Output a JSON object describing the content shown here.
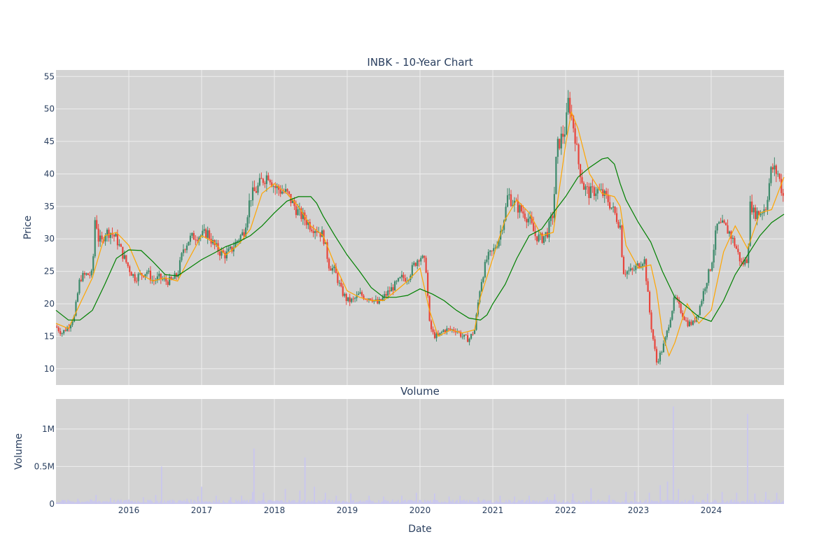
{
  "chart_data": [
    {
      "type": "candlestick",
      "title": "INBK - 10-Year Chart",
      "ylabel": "Price",
      "xlabel": "",
      "ylim": [
        7.5,
        56
      ],
      "xlim": [
        2015.0,
        2025.0
      ],
      "y_ticks": [
        10,
        15,
        20,
        25,
        30,
        35,
        40,
        45,
        50,
        55
      ],
      "x_ticks": [
        2016,
        2017,
        2018,
        2019,
        2020,
        2021,
        2022,
        2023,
        2024
      ],
      "grid": true,
      "up_color": "#3d8a6b",
      "down_color": "#e8453c",
      "series": [
        {
          "name": "",
          "kind": "close_path",
          "x": [
            2015.0,
            2015.08,
            2015.17,
            2015.25,
            2015.33,
            2015.42,
            2015.5,
            2015.54,
            2015.58,
            2015.63,
            2015.67,
            2015.75,
            2015.83,
            2015.92,
            2016.0,
            2016.08,
            2016.17,
            2016.25,
            2016.33,
            2016.42,
            2016.5,
            2016.58,
            2016.67,
            2016.75,
            2016.83,
            2016.92,
            2017.0,
            2017.08,
            2017.17,
            2017.25,
            2017.33,
            2017.42,
            2017.5,
            2017.58,
            2017.67,
            2017.75,
            2017.83,
            2017.92,
            2018.0,
            2018.08,
            2018.17,
            2018.25,
            2018.33,
            2018.42,
            2018.5,
            2018.58,
            2018.67,
            2018.75,
            2018.83,
            2018.92,
            2019.0,
            2019.08,
            2019.17,
            2019.25,
            2019.33,
            2019.42,
            2019.5,
            2019.58,
            2019.67,
            2019.75,
            2019.83,
            2019.92,
            2020.0,
            2020.08,
            2020.13,
            2020.17,
            2020.21,
            2020.25,
            2020.33,
            2020.42,
            2020.5,
            2020.58,
            2020.67,
            2020.75,
            2020.83,
            2020.92,
            2021.0,
            2021.08,
            2021.17,
            2021.21,
            2021.25,
            2021.33,
            2021.42,
            2021.5,
            2021.58,
            2021.67,
            2021.75,
            2021.83,
            2021.88,
            2021.92,
            2022.0,
            2022.04,
            2022.08,
            2022.13,
            2022.17,
            2022.25,
            2022.33,
            2022.42,
            2022.5,
            2022.58,
            2022.67,
            2022.75,
            2022.79,
            2022.83,
            2022.92,
            2023.0,
            2023.08,
            2023.17,
            2023.21,
            2023.25,
            2023.33,
            2023.38,
            2023.42,
            2023.5,
            2023.58,
            2023.67,
            2023.75,
            2023.83,
            2023.92,
            2024.0,
            2024.08,
            2024.17,
            2024.25,
            2024.33,
            2024.42,
            2024.5,
            2024.54,
            2024.58,
            2024.67,
            2024.75,
            2024.83,
            2024.92,
            2025.0
          ],
          "close": [
            16.5,
            15.5,
            16.5,
            18,
            24,
            24.5,
            24.5,
            34,
            30,
            29.5,
            31,
            31,
            30,
            27.5,
            25.5,
            24,
            24.5,
            25,
            23.5,
            24,
            23.5,
            23.5,
            24.5,
            28.5,
            30,
            30.5,
            30.5,
            31,
            29,
            28,
            27.5,
            28.5,
            30,
            31,
            36.5,
            37.5,
            39,
            40,
            38,
            37.5,
            37,
            35.5,
            34,
            33,
            32,
            31.5,
            30.5,
            26,
            25,
            22,
            20.5,
            20.5,
            21.5,
            21,
            21,
            20,
            21,
            22,
            23,
            24,
            24,
            26,
            27.5,
            26,
            17,
            15.5,
            15,
            15,
            16,
            16,
            16,
            15,
            14.5,
            16,
            23,
            27,
            28,
            30,
            34,
            37,
            36,
            35,
            34,
            33,
            30.5,
            30,
            31,
            34,
            44,
            45,
            47,
            51.5,
            49,
            46,
            42,
            38,
            37,
            37.5,
            37,
            36,
            34,
            32,
            25,
            25,
            25,
            26,
            27,
            17,
            14,
            11,
            13,
            15,
            17,
            21,
            19,
            17,
            17,
            19,
            23,
            26,
            32,
            32,
            31,
            29,
            26,
            27,
            36,
            34,
            34,
            35,
            41,
            40,
            36
          ]
        },
        {
          "name": "",
          "kind": "short_ma",
          "color": "#ffa500",
          "x": [
            2015.0,
            2015.17,
            2015.33,
            2015.5,
            2015.67,
            2015.83,
            2016.0,
            2016.17,
            2016.33,
            2016.5,
            2016.67,
            2016.83,
            2017.0,
            2017.17,
            2017.33,
            2017.5,
            2017.67,
            2017.83,
            2018.0,
            2018.17,
            2018.33,
            2018.5,
            2018.67,
            2018.83,
            2019.0,
            2019.17,
            2019.33,
            2019.5,
            2019.67,
            2019.83,
            2020.0,
            2020.13,
            2020.25,
            2020.42,
            2020.58,
            2020.75,
            2020.83,
            2021.0,
            2021.17,
            2021.33,
            2021.5,
            2021.67,
            2021.83,
            2022.0,
            2022.08,
            2022.17,
            2022.33,
            2022.5,
            2022.67,
            2022.75,
            2022.83,
            2023.0,
            2023.17,
            2023.25,
            2023.33,
            2023.42,
            2023.5,
            2023.67,
            2023.83,
            2024.0,
            2024.17,
            2024.33,
            2024.5,
            2024.67,
            2024.83,
            2025.0
          ],
          "values": [
            17,
            16.2,
            20,
            24,
            30.5,
            31,
            29,
            24.5,
            23.5,
            24,
            23.5,
            27,
            30.5,
            29.5,
            27.5,
            29,
            31.5,
            37,
            38.5,
            37,
            35,
            32,
            30.5,
            26,
            22,
            21,
            20.5,
            20.5,
            22,
            23.5,
            25.5,
            19,
            15,
            16,
            15.5,
            16,
            21,
            27,
            33,
            36,
            34,
            30.5,
            31,
            44.5,
            49.5,
            47,
            40,
            37,
            36.5,
            35,
            29,
            25.5,
            26,
            22,
            15.5,
            12,
            14,
            20,
            17,
            19,
            28,
            32,
            28.5,
            34,
            34.5,
            39.5
          ]
        },
        {
          "name": "",
          "kind": "long_ma",
          "color": "#008000",
          "x": [
            2015.0,
            2015.17,
            2015.33,
            2015.5,
            2015.67,
            2015.83,
            2016.0,
            2016.17,
            2016.33,
            2016.5,
            2016.67,
            2016.83,
            2017.0,
            2017.17,
            2017.33,
            2017.5,
            2017.67,
            2017.83,
            2018.0,
            2018.17,
            2018.33,
            2018.5,
            2018.58,
            2018.67,
            2018.83,
            2019.0,
            2019.17,
            2019.33,
            2019.5,
            2019.67,
            2019.83,
            2020.0,
            2020.17,
            2020.33,
            2020.5,
            2020.67,
            2020.83,
            2020.92,
            2021.0,
            2021.17,
            2021.33,
            2021.5,
            2021.67,
            2021.83,
            2022.0,
            2022.17,
            2022.33,
            2022.5,
            2022.58,
            2022.67,
            2022.75,
            2022.83,
            2023.0,
            2023.17,
            2023.33,
            2023.5,
            2023.67,
            2023.83,
            2024.0,
            2024.17,
            2024.33,
            2024.5,
            2024.67,
            2024.83,
            2025.0
          ],
          "values": [
            19,
            17.5,
            17.5,
            19,
            23,
            27,
            28.3,
            28.2,
            26.5,
            24.5,
            24.3,
            25.5,
            26.8,
            27.8,
            28.8,
            29.5,
            30.5,
            32,
            34,
            35.8,
            36.5,
            36.5,
            35.5,
            33.5,
            30.5,
            27.5,
            25,
            22.5,
            21,
            21,
            21.3,
            22.3,
            21.5,
            20.5,
            19,
            17.8,
            17.5,
            18.3,
            20,
            23,
            27,
            30.5,
            31.5,
            34,
            36.5,
            39.5,
            41,
            42.3,
            42.5,
            41.5,
            38.5,
            36,
            32.5,
            29.5,
            25,
            21,
            19.5,
            18,
            17.3,
            20.5,
            24.5,
            27.5,
            30.5,
            32.5,
            33.8
          ]
        }
      ]
    },
    {
      "type": "bar",
      "title": "Volume",
      "ylabel": "Volume",
      "xlabel": "Date",
      "ylim": [
        0,
        1400000
      ],
      "y_ticks": [
        0,
        500000,
        1000000
      ],
      "y_tick_labels": [
        "0",
        "0.5M",
        "1M"
      ],
      "x_ticks": [
        2016,
        2017,
        2018,
        2019,
        2020,
        2021,
        2022,
        2023,
        2024
      ],
      "grid": true,
      "color": "#c9c6ee",
      "series": [
        {
          "name": "",
          "x": [
            2015.1,
            2015.3,
            2015.55,
            2015.75,
            2016.0,
            2016.2,
            2016.37,
            2016.45,
            2016.6,
            2016.8,
            2016.95,
            2017.0,
            2017.2,
            2017.4,
            2017.55,
            2017.7,
            2017.72,
            2017.85,
            2018.15,
            2018.35,
            2018.42,
            2018.55,
            2018.7,
            2018.85,
            2019.05,
            2019.3,
            2019.5,
            2019.75,
            2019.95,
            2020.2,
            2020.4,
            2020.55,
            2020.8,
            2021.1,
            2021.3,
            2021.5,
            2021.75,
            2021.85,
            2022.1,
            2022.35,
            2022.6,
            2022.83,
            2022.95,
            2023.15,
            2023.3,
            2023.4,
            2023.48,
            2023.55,
            2023.75,
            2023.95,
            2024.15,
            2024.35,
            2024.5,
            2024.6,
            2024.75,
            2024.9
          ],
          "values": [
            50000,
            70000,
            120000,
            80000,
            60000,
            90000,
            120000,
            500000,
            60000,
            70000,
            100000,
            230000,
            110000,
            90000,
            110000,
            160000,
            740000,
            150000,
            200000,
            180000,
            620000,
            230000,
            150000,
            110000,
            140000,
            110000,
            100000,
            110000,
            150000,
            140000,
            100000,
            110000,
            90000,
            110000,
            100000,
            110000,
            90000,
            130000,
            140000,
            210000,
            120000,
            160000,
            170000,
            150000,
            250000,
            300000,
            1300000,
            200000,
            120000,
            140000,
            160000,
            150000,
            1200000,
            140000,
            160000,
            150000
          ]
        }
      ]
    }
  ]
}
